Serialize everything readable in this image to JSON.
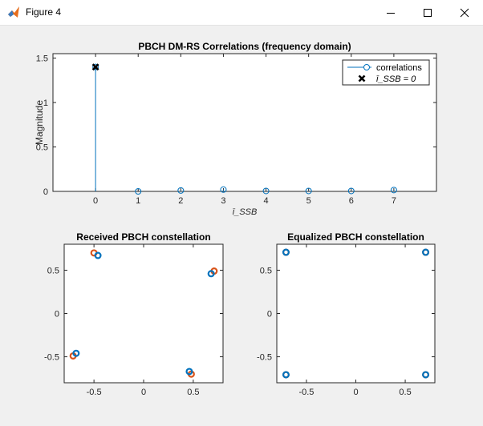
{
  "window": {
    "title": "Figure 4",
    "app_icon": "matlab-logo-icon",
    "controls": [
      "minimize-icon",
      "maximize-icon",
      "close-icon"
    ]
  },
  "chart_data": [
    {
      "type": "stem",
      "title": "PBCH DM-RS Correlations (frequency domain)",
      "xlabel": "ī_SSB",
      "ylabel": "Magnitude",
      "xlim": [
        -1,
        8
      ],
      "ylim": [
        0,
        1.55
      ],
      "x_ticks": [
        0,
        1,
        2,
        3,
        4,
        5,
        6,
        7
      ],
      "y_ticks": [
        0,
        0.5,
        1,
        1.5
      ],
      "y_tick_labels": [
        "0",
        "0.5",
        "1",
        "1.5"
      ],
      "series": [
        {
          "name": "correlations",
          "x": [
            0,
            1,
            2,
            3,
            4,
            5,
            6,
            7
          ],
          "values": [
            1.4,
            0.0,
            0.01,
            0.02,
            0.005,
            0.005,
            0.005,
            0.015
          ],
          "color": "#0072bd"
        },
        {
          "name": "ī_SSB = 0",
          "x": [
            0
          ],
          "values": [
            1.4
          ],
          "color": "#000000"
        }
      ],
      "legend": {
        "position": "top-right",
        "entries": [
          "correlations",
          "ī_SSB = 0"
        ]
      }
    },
    {
      "type": "scatter",
      "title": "Received PBCH constellation",
      "xlim": [
        -0.8,
        0.8
      ],
      "ylim": [
        -0.8,
        0.8
      ],
      "x_ticks": [
        -0.5,
        0,
        0.5
      ],
      "x_tick_labels": [
        "-0.5",
        "0",
        "0.5"
      ],
      "y_ticks": [
        -0.5,
        0,
        0.5
      ],
      "y_tick_labels": [
        "-0.5",
        "0",
        "0.5"
      ],
      "series": [
        {
          "color": "#d95319",
          "x": [
            -0.5,
            0.71,
            -0.71,
            0.48
          ],
          "y": [
            0.7,
            0.49,
            -0.49,
            -0.7
          ]
        },
        {
          "color": "#0072bd",
          "x": [
            -0.46,
            0.68,
            -0.68,
            0.46
          ],
          "y": [
            0.67,
            0.46,
            -0.46,
            -0.67
          ]
        }
      ]
    },
    {
      "type": "scatter",
      "title": "Equalized PBCH constellation",
      "xlim": [
        -0.8,
        0.8
      ],
      "ylim": [
        -0.8,
        0.8
      ],
      "x_ticks": [
        -0.5,
        0,
        0.5
      ],
      "x_tick_labels": [
        "-0.5",
        "0",
        "0.5"
      ],
      "y_ticks": [
        -0.5,
        0,
        0.5
      ],
      "y_tick_labels": [
        "-0.5",
        "0",
        "0.5"
      ],
      "series": [
        {
          "color": "#d95319",
          "x": [
            -0.707,
            0.707,
            -0.707,
            0.707
          ],
          "y": [
            0.707,
            0.707,
            -0.707,
            -0.707
          ]
        },
        {
          "color": "#0072bd",
          "x": [
            -0.707,
            0.707,
            -0.707,
            0.707
          ],
          "y": [
            0.707,
            0.707,
            -0.707,
            -0.707
          ]
        }
      ]
    }
  ]
}
